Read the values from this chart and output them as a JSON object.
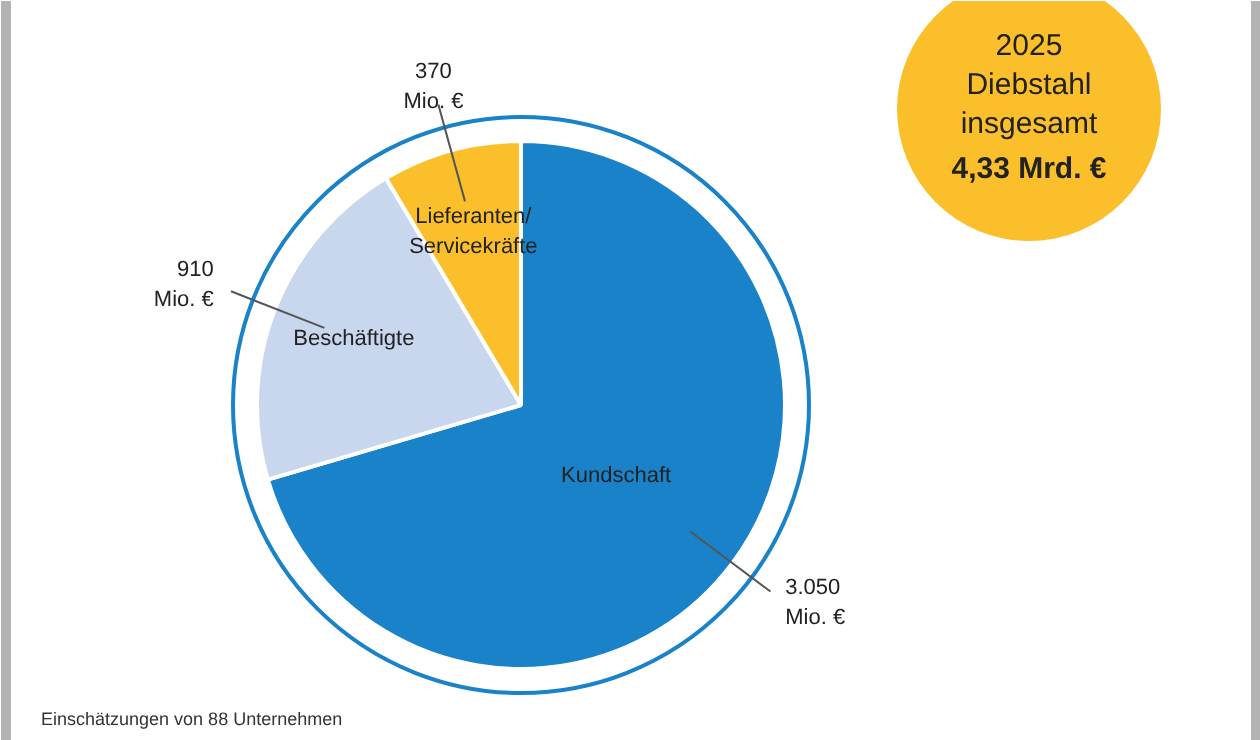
{
  "chart_data": {
    "type": "pie",
    "categories": [
      "Kundschaft",
      "Beschäftigte",
      "Lieferanten/\nServicekräfte"
    ],
    "values": [
      3050,
      910,
      370
    ],
    "colors": [
      "#1a82c9",
      "#c8d6ee",
      "#fbbf2b"
    ],
    "value_labels": [
      "3.050\nMio. €",
      "910\nMio. €",
      "370\nMio. €"
    ],
    "annotations": [
      "2025\nDiebstahl\ninsgesamt",
      "4,33 Mrd. €",
      "Einschätzungen von 88 Unternehmen"
    ]
  }
}
